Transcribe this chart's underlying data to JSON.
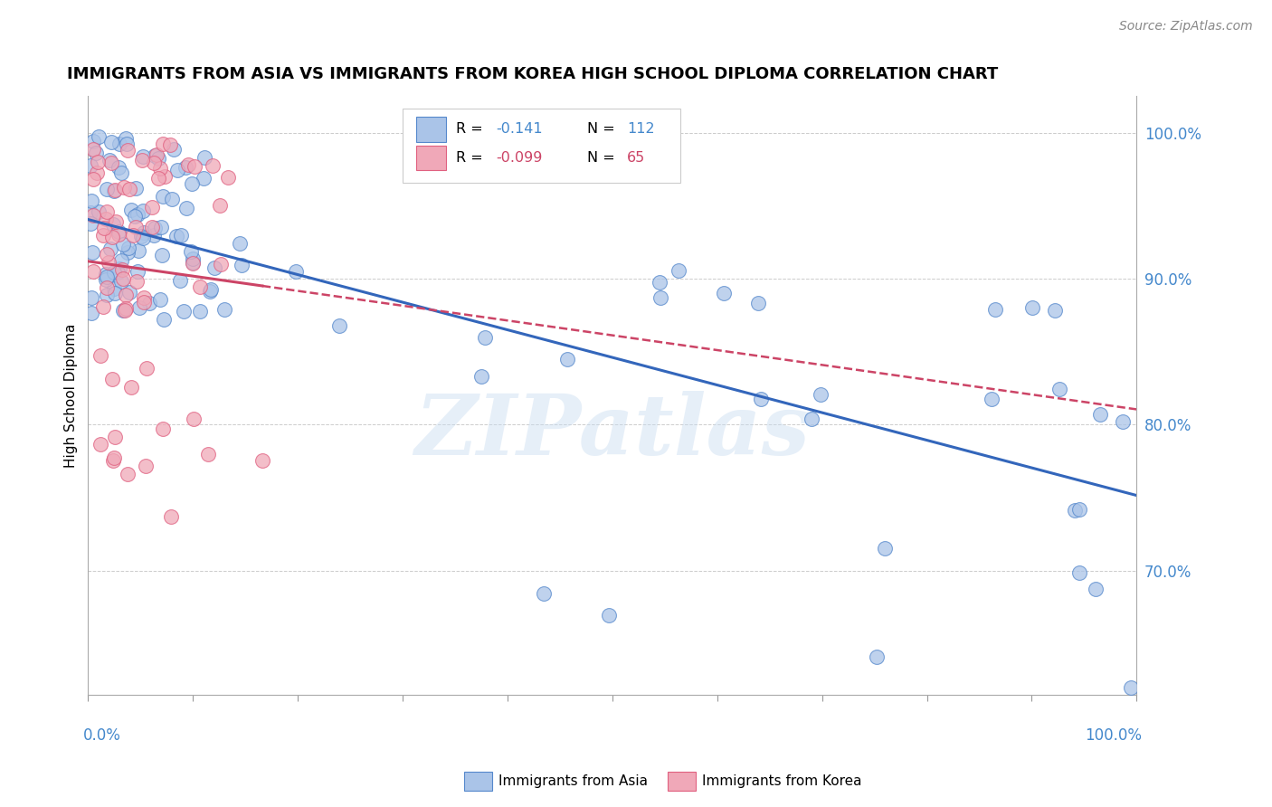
{
  "title": "IMMIGRANTS FROM ASIA VS IMMIGRANTS FROM KOREA HIGH SCHOOL DIPLOMA CORRELATION CHART",
  "source": "Source: ZipAtlas.com",
  "ylabel": "High School Diploma",
  "ytick_labels": [
    "70.0%",
    "80.0%",
    "90.0%",
    "100.0%"
  ],
  "ytick_values": [
    0.7,
    0.8,
    0.9,
    1.0
  ],
  "xlim": [
    0.0,
    1.0
  ],
  "ylim": [
    0.615,
    1.025
  ],
  "legend_r_asia": "-0.141",
  "legend_n_asia": "112",
  "legend_r_korea": "-0.099",
  "legend_n_korea": "65",
  "color_asia_fill": "#aac4e8",
  "color_korea_fill": "#f0a8b8",
  "color_asia_edge": "#5588cc",
  "color_korea_edge": "#e06080",
  "color_asia_line": "#3366bb",
  "color_korea_line": "#cc4466",
  "background_color": "#ffffff",
  "grid_color": "#cccccc",
  "title_fontsize": 13,
  "watermark": "ZIPatlas",
  "tick_color": "#4488cc"
}
